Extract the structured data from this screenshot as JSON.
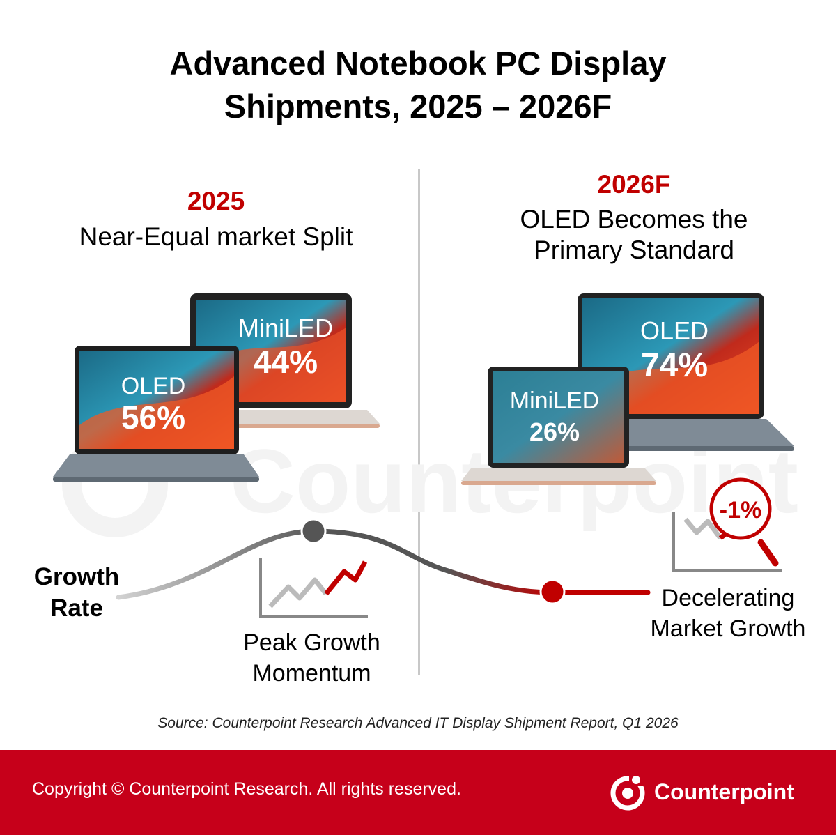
{
  "title_lines": [
    "Advanced Notebook PC Display",
    "Shipments, 2025 – 2026F"
  ],
  "panel_2025": {
    "year": "2025",
    "headline": [
      "Near-Equal market Split"
    ]
  },
  "panel_2026": {
    "year": "2026F",
    "headline": [
      "OLED Becomes the",
      "Primary Standard"
    ]
  },
  "growth_rate_label": [
    "Growth",
    "Rate"
  ],
  "peak_label": [
    "Peak Growth",
    "Momentum"
  ],
  "decel_label": [
    "Decelerating",
    "Market Growth"
  ],
  "decel_badge": "-1%",
  "source": "Source: Counterpoint Research Advanced IT Display Shipment Report, Q1 2026",
  "footer": {
    "copyright": "Copyright © Counterpoint Research. All rights reserved.",
    "brand": "Counterpoint"
  },
  "watermark_text": "Counterpoint",
  "colors": {
    "accent_red": "#c00000",
    "footer_red": "#c6001a",
    "divider": "#c8c8c8"
  },
  "chart_data": {
    "type": "bar",
    "unit": "%",
    "categories": [
      "2025",
      "2026F"
    ],
    "series": [
      {
        "name": "OLED",
        "values": [
          56,
          74
        ]
      },
      {
        "name": "MiniLED",
        "values": [
          44,
          26
        ]
      }
    ],
    "value_labels": {
      "2025": {
        "OLED": "56%",
        "MiniLED": "44%"
      },
      "2026F": {
        "OLED": "74%",
        "MiniLED": "26%"
      }
    },
    "growth_annotation": {
      "2025": "Peak Growth Momentum",
      "2026F": "Decelerating Market Growth",
      "2026F_growth": "-1%"
    }
  }
}
